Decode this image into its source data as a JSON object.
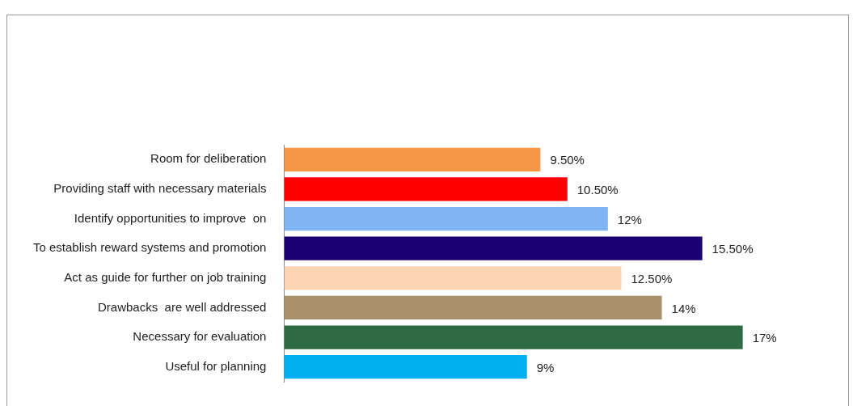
{
  "chart_data": {
    "type": "bar",
    "orientation": "horizontal",
    "categories": [
      "Room for deliberation",
      "Providing staff with necessary materials",
      "Identify opportunities to improve  on",
      "To establish reward systems and promotion",
      "Act as guide for further on job training",
      "Drawbacks  are well addressed",
      "Necessary for evaluation",
      "Useful for planning"
    ],
    "values": [
      9.5,
      10.5,
      12,
      15.5,
      12.5,
      14,
      17,
      9
    ],
    "value_labels": [
      "9.50%",
      "10.50%",
      "12%",
      "15.50%",
      "12.50%",
      "14%",
      "17%",
      "9%"
    ],
    "colors": [
      "#f79646",
      "#ff0000",
      "#7fb5f5",
      "#1a0070",
      "#fcd5b5",
      "#a8906c",
      "#2e6b45",
      "#00b0f0"
    ],
    "tick_labels": "y",
    "grid": false,
    "legend": false
  }
}
